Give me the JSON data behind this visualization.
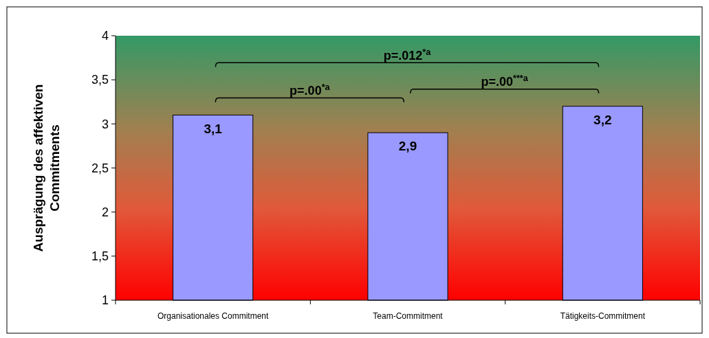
{
  "chart_data": {
    "type": "bar",
    "ylabel": "Ausprägung des affektiven\nCommitments",
    "categories": [
      "Organisationales Commitment",
      "Team-Commitment",
      "Tätigkeits-Commitment"
    ],
    "values": [
      3.1,
      2.9,
      3.2
    ],
    "color": "#9999ff",
    "value_labels": [
      "3,1",
      "2,9",
      "3,2"
    ],
    "ylim": [
      1,
      4
    ],
    "yticks": [
      1,
      {
        "value": 1.5,
        "label": "1,5"
      },
      2,
      {
        "value": 2.5,
        "label": "2,5"
      },
      3,
      {
        "value": 3.5,
        "label": "3,5"
      },
      4
    ],
    "grid": false,
    "annotations": [
      "p=.012$^{*a}$",
      "p=.00$^{*a}$",
      "p=.00$^{***a}$"
    ]
  }
}
